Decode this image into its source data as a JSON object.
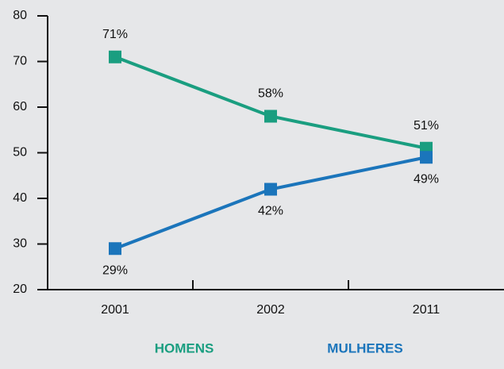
{
  "chart_data": {
    "type": "line",
    "categories": [
      "2001",
      "2002",
      "2011"
    ],
    "series": [
      {
        "name": "HOMENS",
        "color": "#1a9e80",
        "values": [
          71,
          58,
          51
        ],
        "value_labels": [
          "71%",
          "58%",
          "51%"
        ]
      },
      {
        "name": "MULHERES",
        "color": "#1b75bb",
        "values": [
          29,
          42,
          49
        ],
        "value_labels": [
          "29%",
          "42%",
          "49%"
        ]
      }
    ],
    "ylim": [
      20,
      80
    ],
    "yticks": [
      20,
      30,
      40,
      50,
      60,
      70,
      80
    ]
  }
}
